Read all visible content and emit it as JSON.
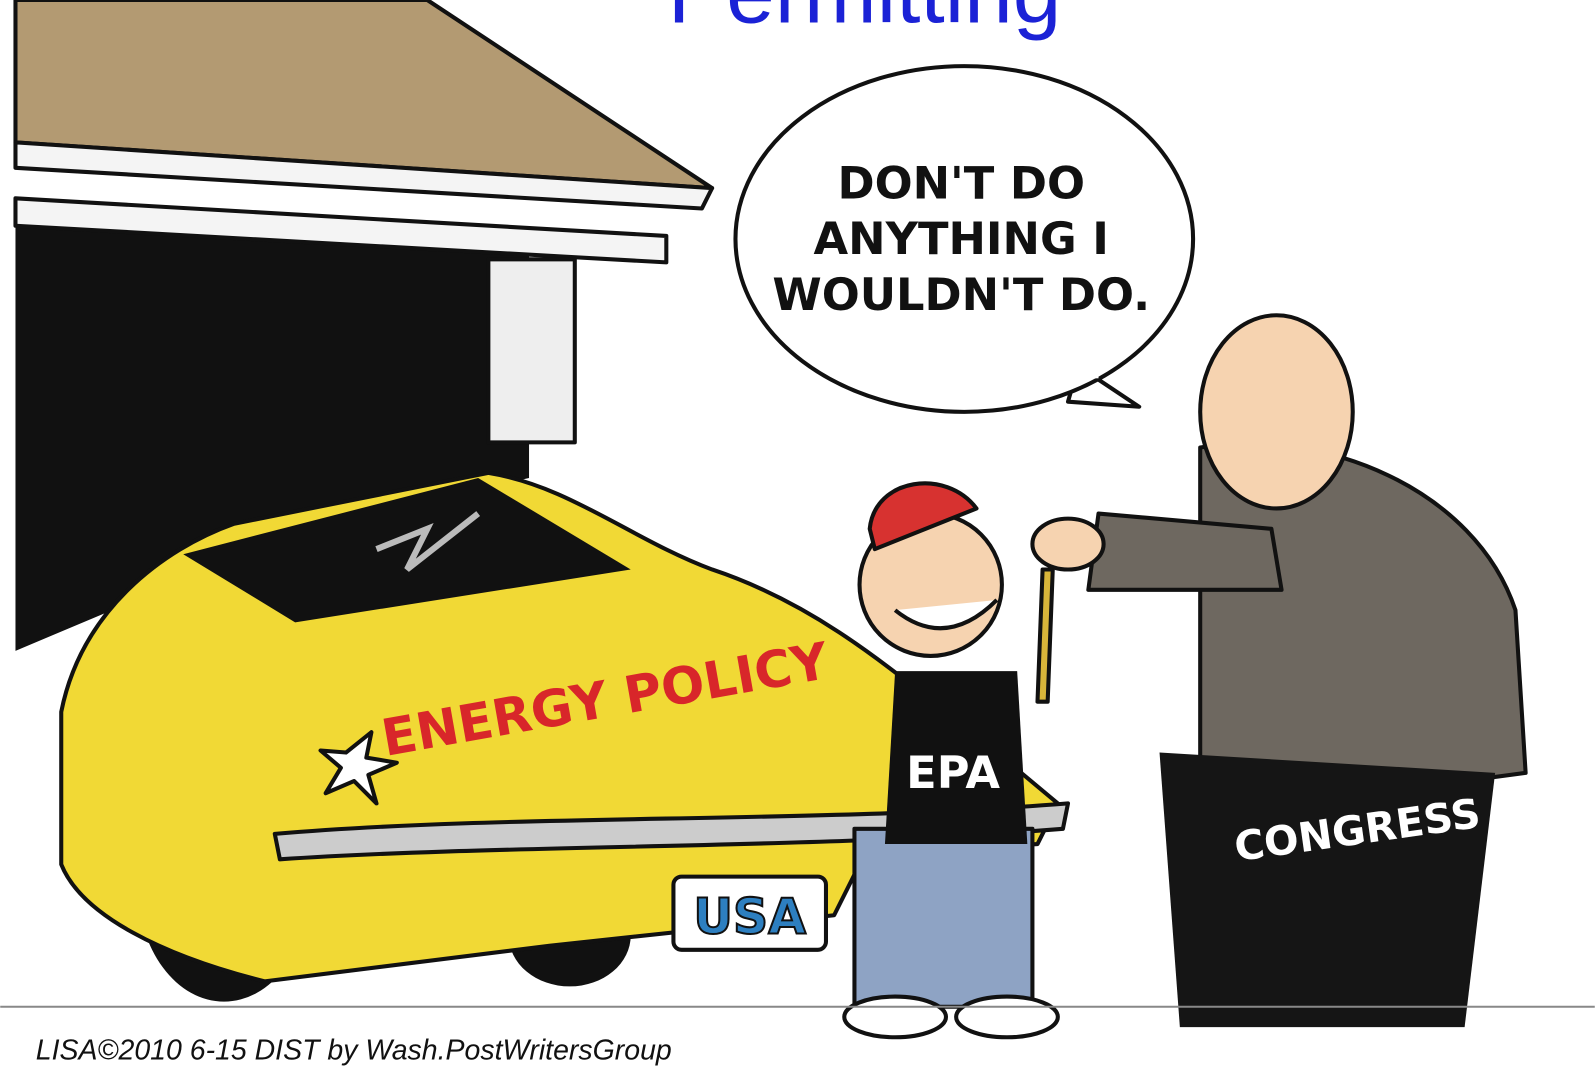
{
  "title": "Permitting",
  "speech_bubble": {
    "lines": [
      "DON'T DO",
      "ANYTHING I",
      "WOULDN'T DO."
    ]
  },
  "labels": {
    "car": "ENERGY POLICY",
    "plate": "USA",
    "shirt": "EPA",
    "pants": "CONGRESS"
  },
  "signature": "LISA©2010 6-15 DIST by Wash.PostWritersGroup"
}
